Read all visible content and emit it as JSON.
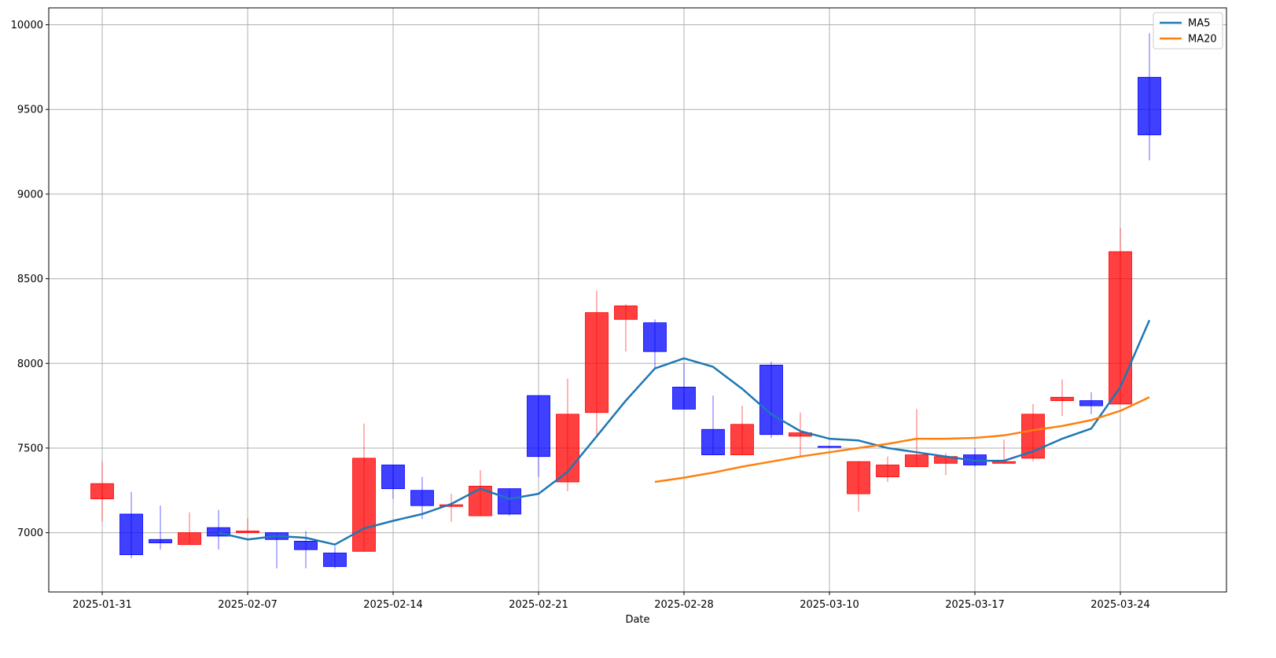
{
  "chart_data": {
    "type": "candlestick",
    "xlabel": "Date",
    "ylabel": "",
    "ylim": [
      6650,
      10100
    ],
    "grid": true,
    "legend_position": "top-right",
    "colors": {
      "up": "#ff0000",
      "down": "#0000ff",
      "ma5": "#1f77b4",
      "ma20": "#ff7f0e",
      "grid": "#b0b0b0"
    },
    "x_ticks": [
      "2025-01-31",
      "2025-02-07",
      "2025-02-14",
      "2025-02-21",
      "2025-02-28",
      "2025-03-10",
      "2025-03-17",
      "2025-03-24"
    ],
    "y_ticks": [
      7000,
      7500,
      8000,
      8500,
      9000,
      9500,
      10000
    ],
    "candles": [
      {
        "date": "2025-01-31",
        "open": 7200,
        "high": 7420,
        "low": 7065,
        "close": 7290
      },
      {
        "date": "2025-02-03",
        "open": 7110,
        "high": 7240,
        "low": 6850,
        "close": 6870
      },
      {
        "date": "2025-02-04",
        "open": 6960,
        "high": 7160,
        "low": 6900,
        "close": 6940
      },
      {
        "date": "2025-02-05",
        "open": 6930,
        "high": 7120,
        "low": 6930,
        "close": 7000
      },
      {
        "date": "2025-02-06",
        "open": 7030,
        "high": 7135,
        "low": 6900,
        "close": 6980
      },
      {
        "date": "2025-02-07",
        "open": 7000,
        "high": 7085,
        "low": 7000,
        "close": 7010
      },
      {
        "date": "2025-02-10",
        "open": 7000,
        "high": 7000,
        "low": 6790,
        "close": 6960
      },
      {
        "date": "2025-02-11",
        "open": 6950,
        "high": 7010,
        "low": 6790,
        "close": 6900
      },
      {
        "date": "2025-02-12",
        "open": 6880,
        "high": 6920,
        "low": 6790,
        "close": 6800
      },
      {
        "date": "2025-02-13",
        "open": 6890,
        "high": 7645,
        "low": 6890,
        "close": 7440
      },
      {
        "date": "2025-02-14",
        "open": 7400,
        "high": 7400,
        "low": 7200,
        "close": 7260
      },
      {
        "date": "2025-02-17",
        "open": 7250,
        "high": 7330,
        "low": 7080,
        "close": 7160
      },
      {
        "date": "2025-02-18",
        "open": 7155,
        "high": 7230,
        "low": 7065,
        "close": 7165
      },
      {
        "date": "2025-02-19",
        "open": 7100,
        "high": 7370,
        "low": 7100,
        "close": 7275
      },
      {
        "date": "2025-02-20",
        "open": 7260,
        "high": 7260,
        "low": 7100,
        "close": 7110
      },
      {
        "date": "2025-02-21",
        "open": 7810,
        "high": 7810,
        "low": 7330,
        "close": 7450
      },
      {
        "date": "2025-02-24",
        "open": 7300,
        "high": 7910,
        "low": 7245,
        "close": 7700
      },
      {
        "date": "2025-02-25",
        "open": 7710,
        "high": 8430,
        "low": 7580,
        "close": 8300
      },
      {
        "date": "2025-02-26",
        "open": 8260,
        "high": 8350,
        "low": 8070,
        "close": 8340
      },
      {
        "date": "2025-02-27",
        "open": 8240,
        "high": 8260,
        "low": 7970,
        "close": 8070
      },
      {
        "date": "2025-02-28",
        "open": 7860,
        "high": 8000,
        "low": 7730,
        "close": 7730
      },
      {
        "date": "2025-03-03",
        "open": 7610,
        "high": 7810,
        "low": 7460,
        "close": 7460
      },
      {
        "date": "2025-03-04",
        "open": 7460,
        "high": 7750,
        "low": 7460,
        "close": 7640
      },
      {
        "date": "2025-03-05",
        "open": 7990,
        "high": 8010,
        "low": 7560,
        "close": 7580
      },
      {
        "date": "2025-03-06",
        "open": 7570,
        "high": 7710,
        "low": 7450,
        "close": 7590
      },
      {
        "date": "2025-03-10",
        "open": 7510,
        "high": 7510,
        "low": 7500,
        "close": 7505
      },
      {
        "date": "2025-03-11",
        "open": 7230,
        "high": 7420,
        "low": 7125,
        "close": 7420
      },
      {
        "date": "2025-03-12",
        "open": 7330,
        "high": 7450,
        "low": 7300,
        "close": 7400
      },
      {
        "date": "2025-03-13",
        "open": 7390,
        "high": 7730,
        "low": 7390,
        "close": 7460
      },
      {
        "date": "2025-03-14",
        "open": 7410,
        "high": 7470,
        "low": 7340,
        "close": 7450
      },
      {
        "date": "2025-03-17",
        "open": 7460,
        "high": 7500,
        "low": 7390,
        "close": 7400
      },
      {
        "date": "2025-03-18",
        "open": 7410,
        "high": 7550,
        "low": 7410,
        "close": 7420
      },
      {
        "date": "2025-03-19",
        "open": 7440,
        "high": 7760,
        "low": 7420,
        "close": 7700
      },
      {
        "date": "2025-03-21",
        "open": 7780,
        "high": 7905,
        "low": 7690,
        "close": 7800
      },
      {
        "date": "2025-03-22",
        "open": 7780,
        "high": 7830,
        "low": 7700,
        "close": 7750
      },
      {
        "date": "2025-03-24",
        "open": 7760,
        "high": 8800,
        "low": 7760,
        "close": 8660
      },
      {
        "date": "2025-03-25",
        "open": 9690,
        "high": 9950,
        "low": 9200,
        "close": 9350
      }
    ],
    "series": [
      {
        "name": "MA5",
        "values": [
          null,
          null,
          null,
          null,
          7000,
          6960,
          6980,
          6970,
          6930,
          7025,
          7070,
          7110,
          7170,
          7260,
          7200,
          7230,
          7360,
          7570,
          7780,
          7970,
          8030,
          7980,
          7850,
          7700,
          7600,
          7555,
          7545,
          7500,
          7475,
          7450,
          7425,
          7425,
          7480,
          7555,
          7615,
          7860,
          8255
        ]
      },
      {
        "name": "MA20",
        "values": [
          null,
          null,
          null,
          null,
          null,
          null,
          null,
          null,
          null,
          null,
          null,
          null,
          null,
          null,
          null,
          null,
          null,
          null,
          null,
          7300,
          7325,
          7355,
          7390,
          7420,
          7450,
          7475,
          7500,
          7525,
          7555,
          7555,
          7560,
          7575,
          7605,
          7630,
          7665,
          7720,
          7800
        ]
      }
    ]
  }
}
